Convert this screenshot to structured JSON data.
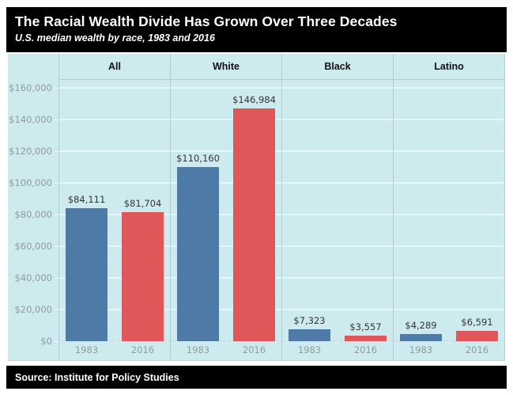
{
  "header": {
    "title": "The Racial Wealth Divide Has Grown Over Three Decades",
    "subtitle": "U.S. median wealth by race, 1983 and 2016"
  },
  "footer": {
    "source": "Source: Institute for Policy Studies"
  },
  "chart_data": {
    "type": "bar",
    "title": "The Racial Wealth Divide Has Grown Over Three Decades",
    "subtitle": "U.S. median wealth by race, 1983 and 2016",
    "groups": [
      "All",
      "White",
      "Black",
      "Latino"
    ],
    "categories": [
      "1983",
      "2016"
    ],
    "series": [
      {
        "name": "1983",
        "color": "#4d7aa7",
        "values": [
          84111,
          110160,
          7323,
          4289
        ],
        "labels": [
          "$84,111",
          "$110,160",
          "$7,323",
          "$4,289"
        ]
      },
      {
        "name": "2016",
        "color": "#e0575a",
        "values": [
          81704,
          146984,
          3557,
          6591
        ],
        "labels": [
          "$81,704",
          "$146,984",
          "$3,557",
          "$6,591"
        ]
      }
    ],
    "xlabel": "",
    "ylabel": "",
    "ylim": [
      0,
      160000
    ],
    "ytick_step": 20000,
    "ytick_labels": [
      "$0",
      "$20,000",
      "$40,000",
      "$60,000",
      "$80,000",
      "$100,000",
      "$120,000",
      "$140,000",
      "$160,000"
    ],
    "grid": true,
    "legend_position": "none",
    "source": "Source: Institute for Policy Studies"
  },
  "style": {
    "plot_bg": "#cdeaee",
    "grid_color": "#e9f6f8",
    "divider_color": "#b7cacf",
    "axis_label_color": "#8f9c9f",
    "value_label_color": "#343434",
    "band_bg": "#000000",
    "band_text": "#ffffff",
    "bar_1983": "#4d7aa7",
    "bar_2016": "#e0575a"
  }
}
